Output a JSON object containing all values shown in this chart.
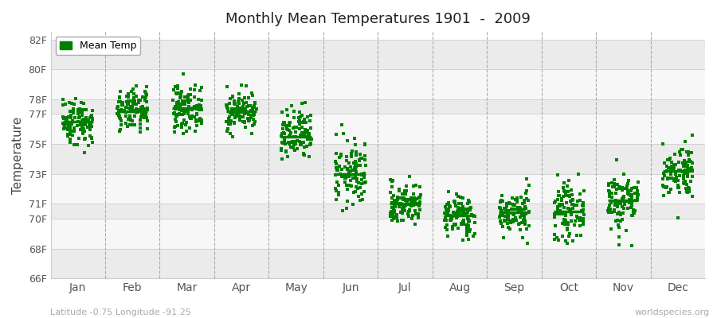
{
  "title": "Monthly Mean Temperatures 1901  -  2009",
  "ylabel": "Temperature",
  "xlabel_labels": [
    "Jan",
    "Feb",
    "Mar",
    "Apr",
    "May",
    "Jun",
    "Jul",
    "Aug",
    "Sep",
    "Oct",
    "Nov",
    "Dec"
  ],
  "footer_left": "Latitude -0.75 Longitude -91.25",
  "footer_right": "worldspecies.org",
  "legend_label": "Mean Temp",
  "ylim": [
    66,
    82.5
  ],
  "yticks": [
    66,
    68,
    70,
    71,
    73,
    75,
    77,
    78,
    80,
    82
  ],
  "ytick_labels": [
    "66F",
    "68F",
    "70F",
    "71F",
    "73F",
    "75F",
    "77F",
    "78F",
    "80F",
    "82F"
  ],
  "dot_color": "#008000",
  "background_color": "#ffffff",
  "plot_bg_color": "#ffffff",
  "monthly_means": [
    76.5,
    77.2,
    77.4,
    77.2,
    75.5,
    73.0,
    71.0,
    70.2,
    70.4,
    70.5,
    71.2,
    73.2
  ],
  "monthly_std": [
    0.8,
    0.7,
    0.75,
    0.65,
    0.9,
    1.1,
    0.7,
    0.7,
    0.7,
    0.9,
    1.0,
    0.9
  ],
  "n_years": 109,
  "seed": 42,
  "band_colors": [
    "#ebebeb",
    "#f7f7f7"
  ],
  "grid_color": "#cccccc",
  "dashed_line_color": "#aaaaaa",
  "spine_color": "#cccccc"
}
